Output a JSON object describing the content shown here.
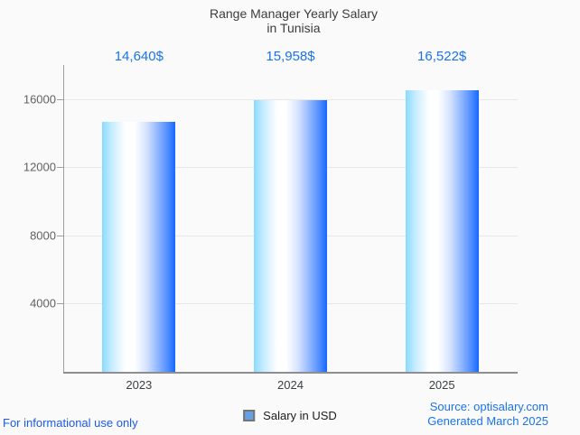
{
  "title": {
    "line1": "Range Manager Yearly Salary",
    "line2": "in Tunisia"
  },
  "chart_data": {
    "type": "bar",
    "title": "Range Manager Yearly Salary in Tunisia",
    "categories": [
      "2023",
      "2024",
      "2025"
    ],
    "series": [
      {
        "name": "Salary in USD",
        "values": [
          14640,
          15958,
          16522
        ],
        "value_labels": [
          "14,640$",
          "15,958$",
          "16,522$"
        ]
      }
    ],
    "xlabel": "",
    "ylabel": "",
    "ylim": [
      0,
      18000
    ],
    "yticks": [
      4000,
      8000,
      12000,
      16000
    ],
    "grid": true,
    "legend_position": "bottom",
    "bar_gradient": [
      "#8adaff",
      "#ffffff",
      "#1468ff"
    ]
  },
  "legend": {
    "label": "Salary in USD",
    "swatch_fill": "#64a1e4",
    "swatch_border": "#757575"
  },
  "footer": {
    "left": "For informational use only",
    "source": "Source: optisalary.com",
    "generated": "Generated March 2025"
  },
  "colors": {
    "value_label_blue": "#1a73e8",
    "title_gray": "#3c3c3c",
    "axis_gray": "#9e9e9e",
    "gridline_gray": "#e7e7e7",
    "tick_label_gray": "#616161",
    "category_label_gray": "#3c4043",
    "background": "#fafafa"
  }
}
